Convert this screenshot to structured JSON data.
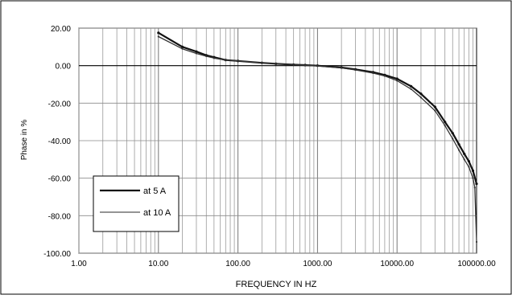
{
  "chart_data": {
    "type": "line",
    "title": "",
    "xlabel": "FREQUENCY IN HZ",
    "ylabel": "Phase in %",
    "xscale": "log",
    "xlim": [
      1,
      100000
    ],
    "ylim": [
      -100,
      20
    ],
    "x_tick_labels": [
      "1.00",
      "10.00",
      "100.00",
      "1000.00",
      "10000.00",
      "100000.00"
    ],
    "y_tick_labels": [
      "20.00",
      "0.00",
      "-20.00",
      "-40.00",
      "-60.00",
      "-80.00",
      "-100.00"
    ],
    "grid": true,
    "legend_position": "bottom-left",
    "series": [
      {
        "name": "at 5 A",
        "color": "#111111",
        "x": [
          10,
          20,
          30,
          40,
          50,
          70,
          100,
          200,
          300,
          500,
          700,
          1000,
          2000,
          3000,
          5000,
          7000,
          10000,
          15000,
          20000,
          30000,
          40000,
          50000,
          60000,
          70000,
          80000,
          90000,
          100000
        ],
        "y": [
          17.5,
          10,
          7.5,
          5.5,
          4.5,
          3,
          2.5,
          1.5,
          1,
          0.5,
          0.3,
          0,
          -1,
          -2,
          -3.5,
          -5,
          -7,
          -11,
          -15,
          -22,
          -30,
          -36,
          -42,
          -47,
          -51,
          -56,
          -63
        ]
      },
      {
        "name": "at 10 A",
        "color": "#333333",
        "x": [
          10,
          20,
          30,
          40,
          50,
          70,
          100,
          200,
          300,
          500,
          700,
          1000,
          2000,
          3000,
          5000,
          7000,
          10000,
          15000,
          20000,
          30000,
          40000,
          50000,
          60000,
          70000,
          80000,
          90000,
          95000,
          100000
        ],
        "y": [
          15.5,
          9,
          6.5,
          5,
          4,
          3,
          2.5,
          1.5,
          1,
          0.5,
          0.2,
          -0.2,
          -1.2,
          -2.3,
          -4,
          -5.5,
          -8,
          -12.5,
          -17,
          -24,
          -32,
          -39,
          -45,
          -50,
          -54,
          -60,
          -65,
          -94
        ]
      }
    ]
  }
}
